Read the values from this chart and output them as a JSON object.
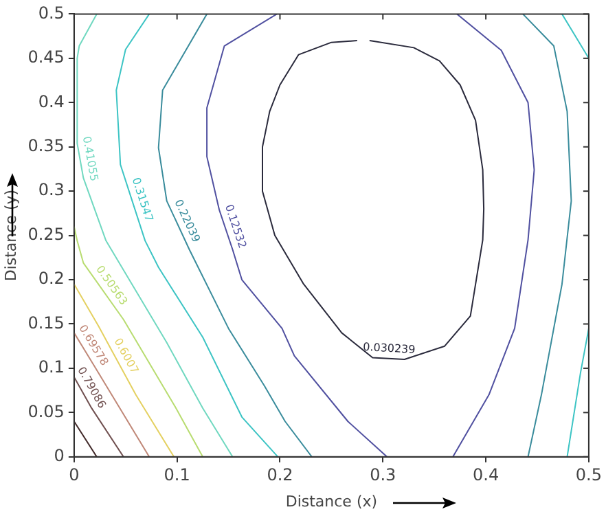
{
  "chart_data": {
    "type": "line",
    "xlabel": "Distance (x)",
    "ylabel": "Distance (y)",
    "xlim": [
      0,
      0.5
    ],
    "ylim": [
      0,
      0.5
    ],
    "xticks": [
      0,
      0.1,
      0.2,
      0.3,
      0.4,
      0.5
    ],
    "yticks": [
      0,
      0.05,
      0.1,
      0.15,
      0.2,
      0.25,
      0.3,
      0.35,
      0.4,
      0.45,
      0.5
    ],
    "grid": false,
    "legend": false,
    "marker": "none",
    "line_style": "solid",
    "series": [
      {
        "name": "0.030239",
        "color": "#2a2a3c",
        "x": [
          0.287,
          0.33,
          0.355,
          0.375,
          0.39,
          0.397,
          0.398,
          0.397,
          0.385,
          0.36,
          0.321,
          0.29,
          0.26,
          0.223,
          0.195,
          0.183,
          0.183,
          0.19,
          0.2,
          0.218,
          0.25,
          0.275
        ],
        "values": [
          0.47,
          0.462,
          0.447,
          0.42,
          0.38,
          0.324,
          0.28,
          0.245,
          0.159,
          0.125,
          0.11,
          0.112,
          0.14,
          0.195,
          0.25,
          0.3,
          0.35,
          0.39,
          0.42,
          0.454,
          0.468,
          0.47
        ]
      },
      {
        "name": "0.12532",
        "color": "#5050a0",
        "x": [
          0.197,
          0.146,
          0.129,
          0.129,
          0.141,
          0.154,
          0.163,
          0.202,
          0.214,
          0.266,
          0.304,
          null,
          0.368,
          0.403,
          0.428,
          0.441,
          0.447,
          0.441,
          0.415,
          0.372
        ],
        "values": [
          0.5,
          0.464,
          0.394,
          0.339,
          0.279,
          0.234,
          0.2,
          0.145,
          0.114,
          0.04,
          0,
          null,
          0,
          0.07,
          0.145,
          0.245,
          0.324,
          0.4,
          0.459,
          0.5
        ]
      },
      {
        "name": "0.22039",
        "color": "#3a8c9c",
        "x": [
          0.129,
          0.086,
          0.082,
          0.09,
          0.112,
          0.15,
          0.185,
          0.205,
          0.231,
          null,
          0.441,
          0.454,
          0.474,
          0.483,
          0.479,
          0.466,
          0.436
        ],
        "values": [
          0.5,
          0.414,
          0.349,
          0.289,
          0.234,
          0.145,
          0.08,
          0.04,
          0,
          null,
          0,
          0.07,
          0.195,
          0.289,
          0.39,
          0.464,
          0.5
        ]
      },
      {
        "name": "0.31547",
        "color": "#3cc4c4",
        "x": [
          0.073,
          0.05,
          0.041,
          0.045,
          0.069,
          0.082,
          0.125,
          0.163,
          0.198,
          null,
          0.479,
          0.492,
          0.5,
          null,
          0.474,
          0.5
        ],
        "values": [
          0.5,
          0.46,
          0.414,
          0.33,
          0.244,
          0.214,
          0.135,
          0.045,
          0,
          null,
          0,
          0.095,
          0.145,
          null,
          0.5,
          0.45
        ]
      },
      {
        "name": "0.41055",
        "color": "#70d8c0",
        "x": [
          0.022,
          0.005,
          0.003,
          0.003,
          0.009,
          0.031,
          0.09,
          0.125,
          0.154
        ],
        "values": [
          0.5,
          0.464,
          0.45,
          0.354,
          0.315,
          0.244,
          0.129,
          0.055,
          0
        ]
      },
      {
        "name": "0.50563",
        "color": "#b8dc70",
        "x": [
          0,
          0.003,
          0.009,
          0.048,
          0.099,
          0.125
        ],
        "values": [
          0.26,
          0.244,
          0.219,
          0.155,
          0.055,
          0
        ]
      },
      {
        "name": "0.6007",
        "color": "#e4d060",
        "x": [
          0,
          0.024,
          0.06,
          0.097
        ],
        "values": [
          0.195,
          0.147,
          0.07,
          0
        ]
      },
      {
        "name": "0.69578",
        "color": "#c08878",
        "x": [
          0,
          0.021,
          0.073
        ],
        "values": [
          0.14,
          0.1,
          0
        ]
      },
      {
        "name": "0.79086",
        "color": "#705050",
        "x": [
          0,
          0.017,
          0.048
        ],
        "values": [
          0.09,
          0.055,
          0
        ]
      },
      {
        "color": "#402828",
        "x": [
          0,
          0.022
        ],
        "values": [
          0.04,
          0
        ]
      }
    ]
  }
}
